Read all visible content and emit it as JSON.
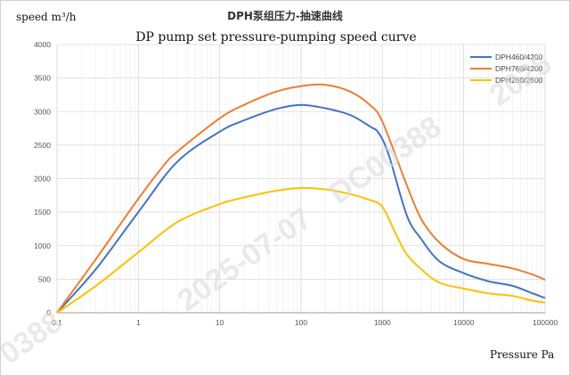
{
  "chart_data": {
    "type": "line",
    "title": "DPH泵组压力-抽速曲线",
    "subtitle": "DP pump set pressure-pumping speed curve",
    "ylabel": "speed m³/h",
    "xlabel": "Pressure Pa",
    "x_scale": "log",
    "xlim": [
      0.1,
      100000
    ],
    "ylim": [
      0,
      4000
    ],
    "x_ticks": [
      0.1,
      1,
      10,
      100,
      1000,
      10000,
      100000
    ],
    "x_tick_labels": [
      "0.1",
      "1",
      "10",
      "100",
      "1000",
      "10000",
      "100000"
    ],
    "y_ticks": [
      0,
      500,
      1000,
      1500,
      2000,
      2500,
      3000,
      3500,
      4000
    ],
    "y_tick_labels": [
      "0",
      "500",
      "1000",
      "1500",
      "2000",
      "2500",
      "3000",
      "3500",
      "4000"
    ],
    "grid": true,
    "legend_position": "top-right",
    "series": [
      {
        "name": "DPH460/4200",
        "color": "#4472c4",
        "x": [
          0.1,
          0.3,
          1,
          3,
          10,
          20,
          50,
          100,
          200,
          400,
          700,
          900,
          1200,
          2000,
          3000,
          5000,
          10000,
          20000,
          40000,
          70000,
          100000
        ],
        "y": [
          0,
          650,
          1500,
          2250,
          2700,
          2870,
          3040,
          3100,
          3050,
          2950,
          2780,
          2680,
          2350,
          1450,
          1100,
          770,
          590,
          470,
          400,
          290,
          220
        ]
      },
      {
        "name": "DPH760/4200",
        "color": "#ed7d31",
        "x": [
          0.1,
          0.3,
          1,
          2,
          3,
          10,
          20,
          50,
          100,
          200,
          400,
          700,
          1000,
          2000,
          3000,
          5000,
          10000,
          20000,
          40000,
          70000,
          100000
        ],
        "y": [
          0,
          800,
          1700,
          2180,
          2400,
          2900,
          3100,
          3300,
          3380,
          3400,
          3300,
          3100,
          2850,
          1900,
          1400,
          1050,
          800,
          730,
          660,
          570,
          490
        ]
      },
      {
        "name": "DPH260/2600",
        "color": "#ffc000",
        "x": [
          0.1,
          0.3,
          1,
          3,
          10,
          20,
          50,
          100,
          200,
          400,
          700,
          1000,
          1500,
          2000,
          3000,
          5000,
          10000,
          20000,
          40000,
          70000,
          100000
        ],
        "y": [
          0,
          400,
          900,
          1350,
          1620,
          1720,
          1820,
          1860,
          1840,
          1770,
          1680,
          1580,
          1150,
          870,
          650,
          450,
          360,
          290,
          250,
          180,
          150
        ]
      }
    ]
  },
  "watermark": {
    "date": "2025-07-07",
    "code": "DC00388",
    "code_partial_left": "0388",
    "date_partial_right": "2025"
  }
}
